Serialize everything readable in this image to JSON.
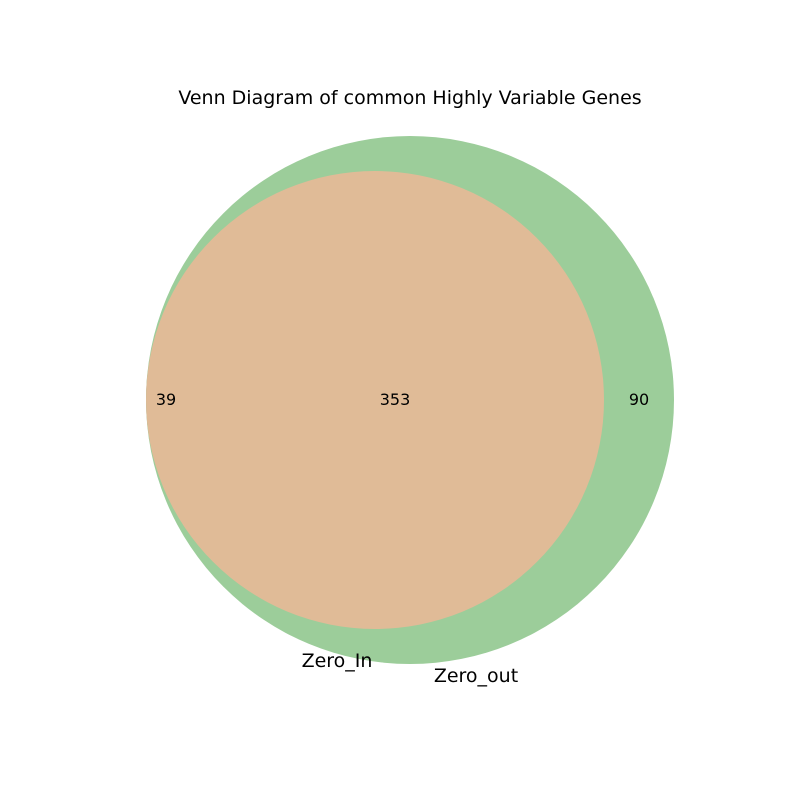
{
  "title": "Venn Diagram of common Highly Variable Genes",
  "sets": [
    {
      "name": "Zero_In",
      "color": "#ff6666",
      "only_count": "39"
    },
    {
      "name": "Zero_out",
      "color": "#66b266",
      "only_count": "90"
    }
  ],
  "intersection": {
    "count": "353",
    "color": "#e0bb97"
  },
  "circle_alpha": 0.67
}
